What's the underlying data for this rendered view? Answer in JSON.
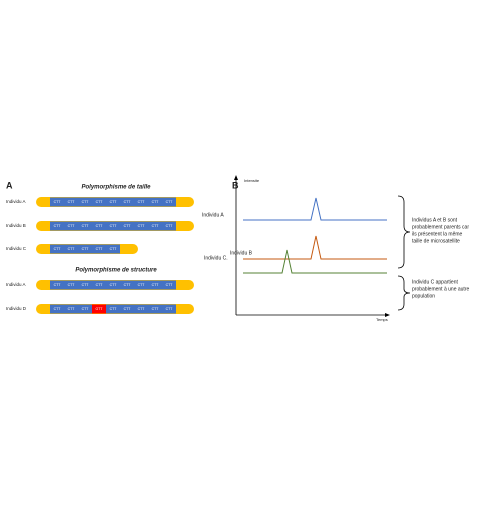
{
  "panel_a": {
    "label": "A",
    "size_title": "Polymorphisme de taille",
    "size_rows": [
      {
        "label": "Individu A",
        "repeats": [
          "CTT",
          "CTT",
          "CTT",
          "CTT",
          "CTT",
          "CTT",
          "CTT",
          "CTT",
          "CTT"
        ]
      },
      {
        "label": "Individu B",
        "repeats": [
          "CTT",
          "CTT",
          "CTT",
          "CTT",
          "CTT",
          "CTT",
          "CTT",
          "CTT",
          "CTT"
        ]
      },
      {
        "label": "Individu C",
        "repeats": [
          "CTT",
          "CTT",
          "CTT",
          "CTT",
          "CTT"
        ]
      }
    ],
    "structure_title": "Polymorphisme de structure",
    "structure_rows": [
      {
        "label": "Individu A",
        "repeats": [
          "CTT",
          "CTT",
          "CTT",
          "CTT",
          "CTT",
          "CTT",
          "CTT",
          "CTT",
          "CTT"
        ]
      },
      {
        "label": "Individu D",
        "repeats": [
          "CTT",
          "CTT",
          "CTT",
          "GTT",
          "CTT",
          "CTT",
          "CTT",
          "CTT",
          "CTT"
        ]
      }
    ]
  },
  "panel_b": {
    "label": "B",
    "y_axis_label": "Intensite",
    "x_axis_label": "Temps",
    "traces": [
      {
        "label": "Individu A"
      },
      {
        "label": "Individu B"
      },
      {
        "label": "Individu C."
      }
    ],
    "note_ab": [
      "Individus A et B sont",
      "probablement parents car",
      "ils présentent la même",
      "taille de microsatellite"
    ],
    "note_c": [
      "Individu C appartient",
      "probablement à une autre",
      "population"
    ]
  }
}
